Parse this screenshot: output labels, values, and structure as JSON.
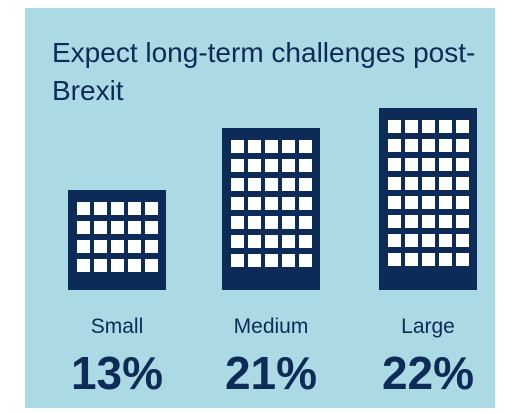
{
  "chart_data": {
    "type": "pictograph",
    "title": "Expect long-term challenges post-Brexit",
    "categories": [
      "Small",
      "Medium",
      "Large"
    ],
    "values": [
      13,
      21,
      22
    ],
    "value_labels": [
      "13%",
      "21%",
      "22%"
    ],
    "color": "#0d2b57",
    "background": "#abd9e4"
  }
}
